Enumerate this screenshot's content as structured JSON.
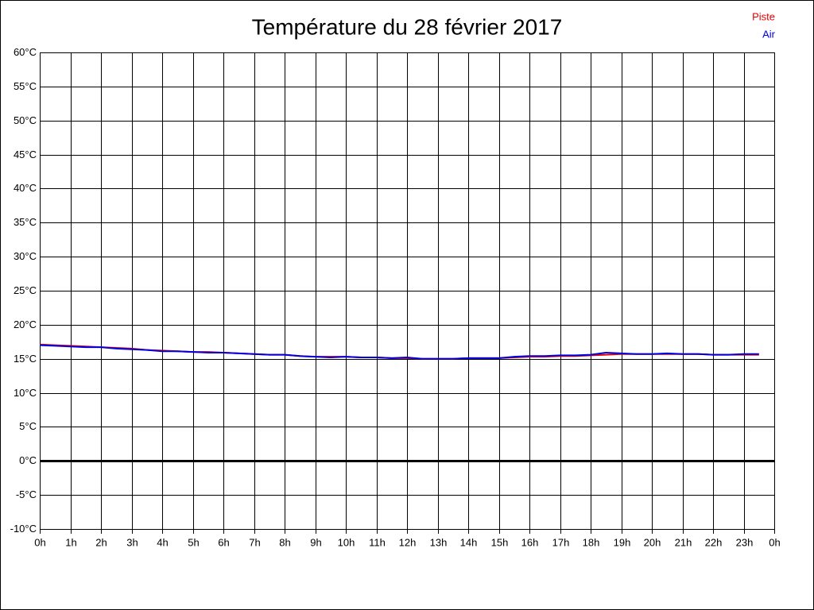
{
  "chart_data": {
    "type": "line",
    "title": "Température du 28 février 2017",
    "x": [
      0,
      0.5,
      1,
      1.5,
      2,
      2.5,
      3,
      3.5,
      4,
      4.5,
      5,
      5.5,
      6,
      6.5,
      7,
      7.5,
      8,
      8.5,
      9,
      9.5,
      10,
      10.5,
      11,
      11.5,
      12,
      12.5,
      13,
      13.5,
      14,
      14.5,
      15,
      15.5,
      16,
      16.5,
      17,
      17.5,
      18,
      18.5,
      19,
      19.5,
      20,
      20.5,
      21,
      21.5,
      22,
      22.5,
      23,
      23.5
    ],
    "series": [
      {
        "name": "Piste",
        "color": "#e00000",
        "values": [
          17.1,
          17.0,
          16.9,
          16.8,
          16.7,
          16.6,
          16.5,
          16.3,
          16.2,
          16.1,
          16.0,
          16.0,
          15.9,
          15.8,
          15.7,
          15.6,
          15.6,
          15.4,
          15.3,
          15.3,
          15.3,
          15.2,
          15.2,
          15.1,
          15.1,
          15.0,
          15.0,
          15.0,
          15.1,
          15.1,
          15.1,
          15.2,
          15.3,
          15.3,
          15.4,
          15.4,
          15.5,
          15.6,
          15.7,
          15.7,
          15.7,
          15.7,
          15.7,
          15.7,
          15.6,
          15.6,
          15.6,
          15.6
        ]
      },
      {
        "name": "Air",
        "color": "#0000e0",
        "values": [
          17.0,
          16.9,
          16.8,
          16.7,
          16.7,
          16.5,
          16.4,
          16.3,
          16.1,
          16.1,
          16.0,
          15.9,
          15.9,
          15.8,
          15.7,
          15.6,
          15.6,
          15.4,
          15.3,
          15.2,
          15.3,
          15.2,
          15.2,
          15.1,
          15.2,
          15.0,
          15.0,
          15.0,
          15.1,
          15.1,
          15.1,
          15.3,
          15.4,
          15.4,
          15.5,
          15.5,
          15.6,
          15.9,
          15.8,
          15.7,
          15.7,
          15.8,
          15.7,
          15.7,
          15.6,
          15.6,
          15.7,
          15.7
        ]
      }
    ],
    "xlim": [
      0,
      24
    ],
    "xticks": [
      {
        "value": 0,
        "label": "0h"
      },
      {
        "value": 1,
        "label": "1h"
      },
      {
        "value": 2,
        "label": "2h"
      },
      {
        "value": 3,
        "label": "3h"
      },
      {
        "value": 4,
        "label": "4h"
      },
      {
        "value": 5,
        "label": "5h"
      },
      {
        "value": 6,
        "label": "6h"
      },
      {
        "value": 7,
        "label": "7h"
      },
      {
        "value": 8,
        "label": "8h"
      },
      {
        "value": 9,
        "label": "9h"
      },
      {
        "value": 10,
        "label": "10h"
      },
      {
        "value": 11,
        "label": "11h"
      },
      {
        "value": 12,
        "label": "12h"
      },
      {
        "value": 13,
        "label": "13h"
      },
      {
        "value": 14,
        "label": "14h"
      },
      {
        "value": 15,
        "label": "15h"
      },
      {
        "value": 16,
        "label": "16h"
      },
      {
        "value": 17,
        "label": "17h"
      },
      {
        "value": 18,
        "label": "18h"
      },
      {
        "value": 19,
        "label": "19h"
      },
      {
        "value": 20,
        "label": "20h"
      },
      {
        "value": 21,
        "label": "21h"
      },
      {
        "value": 22,
        "label": "22h"
      },
      {
        "value": 23,
        "label": "23h"
      },
      {
        "value": 24,
        "label": "0h"
      }
    ],
    "ylim": [
      -10,
      60
    ],
    "yticks": [
      {
        "value": -10,
        "label": "-10°C"
      },
      {
        "value": -5,
        "label": "-5°C"
      },
      {
        "value": 0,
        "label": "0°C"
      },
      {
        "value": 5,
        "label": "5°C"
      },
      {
        "value": 10,
        "label": "10°C"
      },
      {
        "value": 15,
        "label": "15°C"
      },
      {
        "value": 20,
        "label": "20°C"
      },
      {
        "value": 25,
        "label": "25°C"
      },
      {
        "value": 30,
        "label": "30°C"
      },
      {
        "value": 35,
        "label": "35°C"
      },
      {
        "value": 40,
        "label": "40°C"
      },
      {
        "value": 45,
        "label": "45°C"
      },
      {
        "value": 50,
        "label": "50°C"
      },
      {
        "value": 55,
        "label": "55°C"
      },
      {
        "value": 60,
        "label": "60°C"
      }
    ],
    "grid": true,
    "legend": "upper right"
  }
}
